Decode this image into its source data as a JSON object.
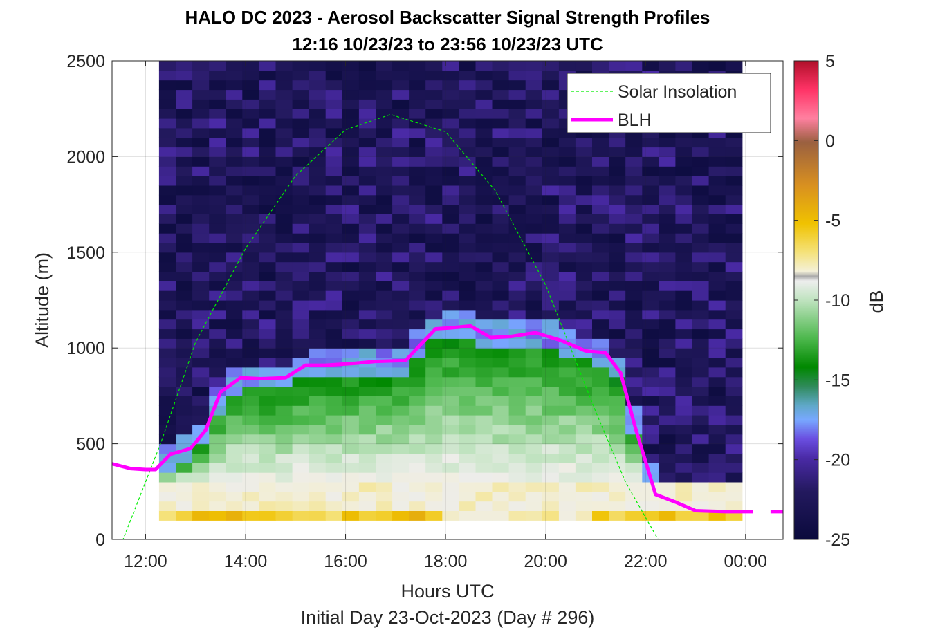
{
  "title_line1": "HALO DC 2023 - Aerosol Backscatter Signal Strength Profiles",
  "title_line2": "12:16 10/23/23 to 23:56 10/23/23  UTC",
  "chart_data": {
    "type": "heatmap",
    "title": "HALO DC 2023 - Aerosol Backscatter Signal Strength Profiles",
    "subtitle": "12:16 10/23/23 to 23:56 10/23/23  UTC",
    "xlabel": "Hours UTC",
    "xlabel2": "Initial Day 23-Oct-2023 (Day # 296)",
    "ylabel": "Altitude (m)",
    "colorbar_label": "dB",
    "xlim_hours": [
      11.33,
      24.75
    ],
    "ylim": [
      0,
      2500
    ],
    "x_ticks": [
      {
        "v": 12,
        "label": "12:00"
      },
      {
        "v": 14,
        "label": "14:00"
      },
      {
        "v": 16,
        "label": "16:00"
      },
      {
        "v": 18,
        "label": "18:00"
      },
      {
        "v": 20,
        "label": "20:00"
      },
      {
        "v": 22,
        "label": "22:00"
      },
      {
        "v": 24,
        "label": "00:00"
      }
    ],
    "y_ticks": [
      0,
      500,
      1000,
      1500,
      2000,
      2500
    ],
    "colorbar_range": [
      -25,
      5
    ],
    "colorbar_ticks": [
      5,
      0,
      -5,
      -10,
      -15,
      -20,
      -25
    ],
    "grid": true,
    "legend_position": "top-right",
    "legend": [
      {
        "label": "Solar Insolation",
        "color": "#00ee00",
        "style": "dashed"
      },
      {
        "label": "BLH",
        "color": "#ff00ff",
        "style": "solid"
      }
    ],
    "heatmap": {
      "x_start_hours": 12.27,
      "x_end_hours": 23.93,
      "alt_start": 100,
      "alt_step": 50,
      "z_min": -25,
      "z_max": 5,
      "note": "columns ~20 min; rows 50 m from 100 to 2500 m"
    },
    "blh": {
      "x": [
        11.33,
        11.7,
        12.0,
        12.2,
        12.5,
        12.9,
        13.2,
        13.5,
        13.9,
        14.3,
        14.8,
        15.2,
        15.6,
        16.2,
        16.6,
        17.2,
        17.8,
        18.1,
        18.5,
        18.9,
        19.3,
        19.8,
        20.3,
        20.8,
        21.2,
        21.5,
        21.8,
        22.2,
        22.6,
        23.0,
        23.6,
        24.15
      ],
      "y": [
        395,
        370,
        365,
        365,
        445,
        475,
        570,
        770,
        845,
        840,
        845,
        910,
        910,
        920,
        930,
        935,
        1100,
        1105,
        1115,
        1055,
        1060,
        1080,
        1040,
        985,
        975,
        870,
        580,
        235,
        195,
        150,
        145,
        145
      ]
    },
    "blh_extra_segment": {
      "x": [
        24.5,
        24.75
      ],
      "y": [
        145,
        145
      ]
    },
    "solar_insolation": {
      "x": [
        11.33,
        11.55,
        12.3,
        13.0,
        14.0,
        15.0,
        16.0,
        16.9,
        18.0,
        19.0,
        20.0,
        21.0,
        21.6,
        22.25,
        24.75
      ],
      "y": [
        0,
        0,
        500,
        1030,
        1520,
        1900,
        2140,
        2220,
        2130,
        1820,
        1330,
        670,
        300,
        0,
        0
      ]
    }
  }
}
